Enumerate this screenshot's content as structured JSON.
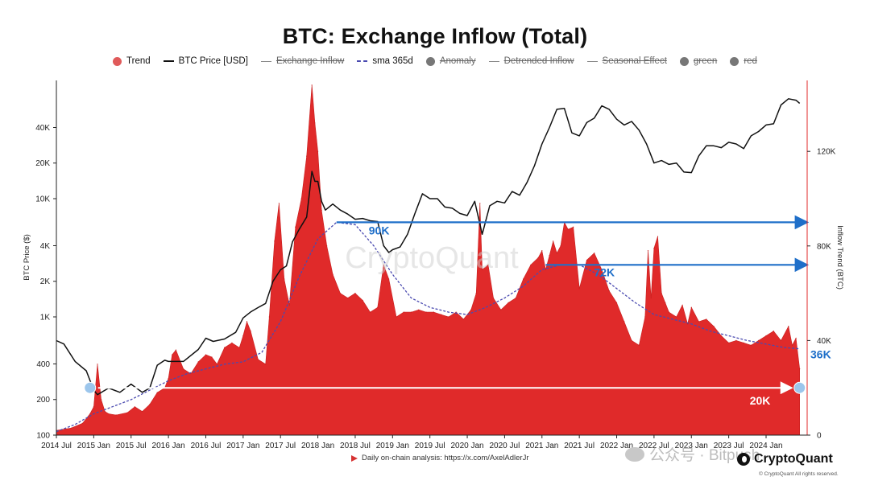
{
  "chart_data": {
    "type": "area",
    "title": "BTC: Exchange Inflow (Total)",
    "left_axis_label": "BTC Price ($)",
    "right_axis_label": "Inflow Trend (BTC)",
    "left_axis_scale": "log",
    "left_axis_ticks": [
      "100",
      "200",
      "400",
      "1K",
      "2K",
      "4K",
      "10K",
      "20K",
      "40K"
    ],
    "left_axis_tick_values": [
      100,
      200,
      400,
      1000,
      2000,
      4000,
      10000,
      20000,
      40000
    ],
    "right_axis_ticks": [
      "0",
      "40K",
      "80K",
      "120K"
    ],
    "right_axis_tick_values": [
      0,
      40000,
      80000,
      120000
    ],
    "x_ticks": [
      "2014 Jul",
      "2015 Jan",
      "2015 Jul",
      "2016 Jan",
      "2016 Jul",
      "2017 Jan",
      "2017 Jul",
      "2018 Jan",
      "2018 Jul",
      "2019 Jan",
      "2019 Jul",
      "2020 Jan",
      "2020 Jul",
      "2021 Jan",
      "2021 Jul",
      "2022 Jan",
      "2022 Jul",
      "2023 Jan",
      "2023 Jul",
      "2024 Jan"
    ],
    "legend": [
      {
        "label": "Trend",
        "swatch": "dot",
        "color": "#e05a5a",
        "enabled": true
      },
      {
        "label": "BTC Price [USD]",
        "swatch": "line",
        "color": "#111111",
        "enabled": true
      },
      {
        "label": "Exchange Inflow",
        "swatch": "thin",
        "color": "#888888",
        "enabled": false
      },
      {
        "label": "sma 365d",
        "swatch": "dash",
        "color": "#4a4ab0",
        "enabled": true
      },
      {
        "label": "Anomaly",
        "swatch": "dot",
        "color": "#777777",
        "enabled": false
      },
      {
        "label": "Detrended Inflow",
        "swatch": "thin",
        "color": "#888888",
        "enabled": false
      },
      {
        "label": "Seasonal Effect",
        "swatch": "thin",
        "color": "#888888",
        "enabled": false
      },
      {
        "label": "green",
        "swatch": "dot",
        "color": "#777777",
        "enabled": false
      },
      {
        "label": "red",
        "swatch": "dot",
        "color": "#777777",
        "enabled": false
      }
    ],
    "series": [
      {
        "name": "Trend",
        "axis": "right",
        "color": "#e02a2a",
        "x": [
          2014.5,
          2014.7,
          2014.85,
          2014.95,
          2015.0,
          2015.05,
          2015.1,
          2015.15,
          2015.2,
          2015.3,
          2015.45,
          2015.55,
          2015.65,
          2015.75,
          2015.85,
          2015.95,
          2016.0,
          2016.05,
          2016.1,
          2016.2,
          2016.3,
          2016.4,
          2016.5,
          2016.58,
          2016.65,
          2016.75,
          2016.85,
          2016.95,
          2017.0,
          2017.05,
          2017.1,
          2017.2,
          2017.3,
          2017.35,
          2017.42,
          2017.48,
          2017.55,
          2017.62,
          2017.7,
          2017.78,
          2017.85,
          2017.92,
          2017.96,
          2018.0,
          2018.05,
          2018.12,
          2018.2,
          2018.3,
          2018.4,
          2018.5,
          2018.6,
          2018.7,
          2018.8,
          2018.88,
          2018.95,
          2019.05,
          2019.15,
          2019.25,
          2019.35,
          2019.45,
          2019.55,
          2019.65,
          2019.75,
          2019.85,
          2019.95,
          2020.05,
          2020.12,
          2020.17,
          2020.2,
          2020.28,
          2020.35,
          2020.45,
          2020.55,
          2020.65,
          2020.75,
          2020.85,
          2020.95,
          2021.0,
          2021.05,
          2021.1,
          2021.15,
          2021.2,
          2021.25,
          2021.3,
          2021.35,
          2021.42,
          2021.5,
          2021.6,
          2021.7,
          2021.8,
          2021.9,
          2022.0,
          2022.1,
          2022.2,
          2022.3,
          2022.38,
          2022.42,
          2022.46,
          2022.5,
          2022.55,
          2022.6,
          2022.65,
          2022.7,
          2022.8,
          2022.88,
          2022.95,
          2023.0,
          2023.1,
          2023.2,
          2023.3,
          2023.4,
          2023.5,
          2023.6,
          2023.7,
          2023.8,
          2023.9,
          2024.0,
          2024.1,
          2024.2,
          2024.3,
          2024.35,
          2024.4,
          2024.45
        ],
        "values": [
          2000,
          3000,
          5000,
          9000,
          12000,
          30000,
          15000,
          10000,
          9000,
          8500,
          9500,
          12000,
          10000,
          13000,
          18000,
          20000,
          24000,
          34000,
          36000,
          28000,
          26000,
          31000,
          34000,
          33000,
          30000,
          37000,
          39000,
          37000,
          42000,
          48000,
          44000,
          32000,
          30000,
          50000,
          82000,
          98000,
          66000,
          55000,
          88000,
          100000,
          118000,
          148000,
          132000,
          120000,
          95000,
          80000,
          68000,
          60000,
          58000,
          60000,
          57000,
          52000,
          54000,
          72000,
          66000,
          50000,
          52000,
          52000,
          53000,
          52000,
          52000,
          51000,
          50000,
          52000,
          49000,
          53000,
          60000,
          98000,
          70000,
          72000,
          58000,
          53000,
          56000,
          58000,
          66000,
          72000,
          75000,
          78000,
          70000,
          76000,
          82000,
          77000,
          80000,
          90000,
          87000,
          88000,
          62000,
          74000,
          77000,
          70000,
          61000,
          56000,
          48000,
          40000,
          38000,
          50000,
          78000,
          58000,
          79000,
          84000,
          60000,
          56000,
          52000,
          50000,
          55000,
          47000,
          54000,
          48000,
          49000,
          46000,
          42000,
          39000,
          40000,
          39000,
          38000,
          40000,
          42000,
          44000,
          40000,
          46000,
          38000,
          41000,
          28000
        ]
      },
      {
        "name": "sma 365d",
        "axis": "right",
        "color": "#4a4ab0",
        "x": [
          2014.5,
          2014.75,
          2015.0,
          2015.25,
          2015.5,
          2015.75,
          2016.0,
          2016.25,
          2016.5,
          2016.75,
          2017.0,
          2017.25,
          2017.5,
          2017.75,
          2018.0,
          2018.25,
          2018.5,
          2018.75,
          2019.0,
          2019.25,
          2019.5,
          2019.75,
          2020.0,
          2020.25,
          2020.5,
          2020.75,
          2021.0,
          2021.25,
          2021.5,
          2021.75,
          2022.0,
          2022.25,
          2022.5,
          2022.75,
          2023.0,
          2023.25,
          2023.5,
          2023.75,
          2024.0,
          2024.25,
          2024.45
        ],
        "values": [
          1500,
          4500,
          9000,
          12000,
          15000,
          19000,
          23000,
          26000,
          28000,
          30000,
          31000,
          35000,
          48000,
          67000,
          83000,
          90000,
          89000,
          80000,
          68000,
          58000,
          54000,
          52000,
          51000,
          54000,
          58000,
          63000,
          70000,
          72000,
          72000,
          68000,
          62000,
          56000,
          51000,
          49000,
          47000,
          44000,
          42000,
          40000,
          38500,
          37000,
          36500
        ]
      },
      {
        "name": "BTC Price [USD]",
        "axis": "left",
        "color": "#111111",
        "x": [
          2014.5,
          2014.6,
          2014.75,
          2014.9,
          2015.0,
          2015.05,
          2015.2,
          2015.35,
          2015.5,
          2015.65,
          2015.75,
          2015.85,
          2015.95,
          2016.0,
          2016.2,
          2016.4,
          2016.5,
          2016.6,
          2016.75,
          2016.9,
          2017.0,
          2017.1,
          2017.2,
          2017.3,
          2017.4,
          2017.5,
          2017.58,
          2017.66,
          2017.75,
          2017.85,
          2017.92,
          2017.96,
          2018.0,
          2018.05,
          2018.1,
          2018.2,
          2018.3,
          2018.4,
          2018.5,
          2018.6,
          2018.7,
          2018.8,
          2018.88,
          2018.95,
          2019.0,
          2019.1,
          2019.2,
          2019.3,
          2019.4,
          2019.5,
          2019.6,
          2019.7,
          2019.8,
          2019.9,
          2020.0,
          2020.1,
          2020.2,
          2020.3,
          2020.4,
          2020.5,
          2020.6,
          2020.7,
          2020.8,
          2020.9,
          2021.0,
          2021.1,
          2021.2,
          2021.3,
          2021.4,
          2021.5,
          2021.6,
          2021.7,
          2021.8,
          2021.9,
          2022.0,
          2022.1,
          2022.2,
          2022.3,
          2022.4,
          2022.5,
          2022.6,
          2022.7,
          2022.8,
          2022.9,
          2023.0,
          2023.1,
          2023.2,
          2023.3,
          2023.4,
          2023.5,
          2023.6,
          2023.7,
          2023.8,
          2023.9,
          2024.0,
          2024.1,
          2024.2,
          2024.3,
          2024.4,
          2024.45
        ],
        "values": [
          630,
          590,
          420,
          350,
          240,
          220,
          250,
          230,
          270,
          230,
          250,
          390,
          430,
          420,
          420,
          530,
          660,
          620,
          650,
          740,
          980,
          1100,
          1200,
          1300,
          2000,
          2500,
          2700,
          4300,
          5500,
          7000,
          17000,
          14000,
          14000,
          9500,
          8000,
          9000,
          8000,
          7400,
          6700,
          6800,
          6500,
          6400,
          4000,
          3500,
          3700,
          3900,
          5000,
          7500,
          11000,
          10000,
          10000,
          8500,
          8300,
          7500,
          7200,
          9500,
          5000,
          8700,
          9500,
          9200,
          11500,
          10700,
          13700,
          19000,
          29000,
          40000,
          57000,
          58000,
          36000,
          34000,
          44000,
          48000,
          61000,
          57000,
          47000,
          42000,
          45000,
          38000,
          29000,
          20000,
          21000,
          19500,
          20000,
          16800,
          16600,
          23000,
          28000,
          28000,
          27000,
          30000,
          29000,
          26500,
          34000,
          37000,
          42000,
          43000,
          62000,
          70000,
          68000,
          64000
        ]
      }
    ],
    "annotations": [
      {
        "label": "90K",
        "value": 90000,
        "from_x": 2018.25,
        "to_x": 2024.55,
        "color": "#1f6fc9"
      },
      {
        "label": "72K",
        "value": 72000,
        "from_x": 2021.05,
        "to_x": 2024.55,
        "color": "#1f6fc9"
      },
      {
        "label": "20K",
        "value": 20000,
        "from_x": 2014.95,
        "to_x": 2024.45,
        "color": "#ffffff"
      },
      {
        "label": "36K",
        "value": 36500,
        "color": "#1f6fc9"
      }
    ],
    "x_range": [
      2014.5,
      2024.55
    ],
    "left_range": [
      100,
      100000
    ],
    "right_range": [
      0,
      150000
    ]
  },
  "watermark": "CryptoQuant",
  "footer": {
    "note": "Daily on-chain analysis: https://x.com/AxelAdlerJr",
    "wechat_watermark": "公众号 · Bitpush",
    "brand": "CryptoQuant",
    "copyright": "© CryptoQuant All rights reserved."
  }
}
